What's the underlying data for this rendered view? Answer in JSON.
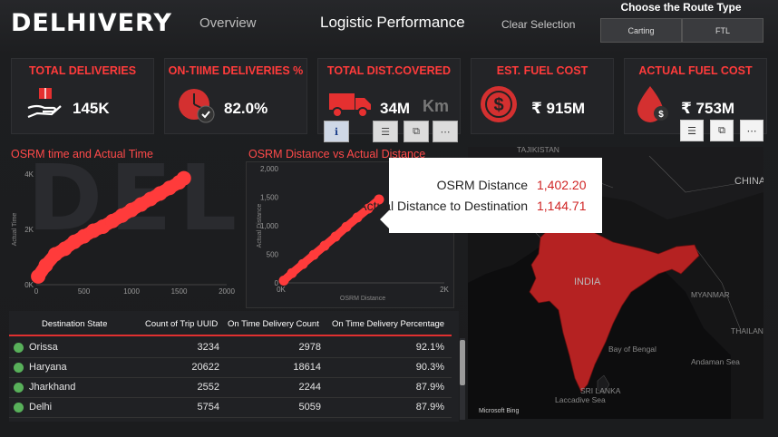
{
  "header": {
    "logo": "DELHIVERY",
    "nav": [
      "Overview",
      "Logistic Performance",
      "Clear Selection"
    ],
    "route_title": "Choose the Route Type",
    "route_options": [
      "Carting",
      "FTL"
    ]
  },
  "kpis": [
    {
      "title": "TOTAL DELIVERIES",
      "value": "145K",
      "icon": "hand-package-icon"
    },
    {
      "title": "ON-TIIME DELIVERIES %",
      "value": "82.0%",
      "icon": "clock-icon"
    },
    {
      "title": "TOTAL DIST.COVERED",
      "value": "34M",
      "unit": "Km",
      "icon": "truck-icon"
    },
    {
      "title": "EST. FUEL COST",
      "value": "₹ 915M",
      "icon": "dollar-icon"
    },
    {
      "title": "ACTUAL FUEL COST",
      "value": "₹ 753M",
      "icon": "fuel-drop-icon"
    }
  ],
  "chart_data": [
    {
      "type": "scatter",
      "title": "OSRM time and Actual Time",
      "xlabel": "",
      "ylabel": "Actual Time",
      "xlim": [
        0,
        2000
      ],
      "ylim": [
        0,
        4000
      ],
      "xticks": [
        "0",
        "500",
        "1000",
        "1500",
        "2000"
      ],
      "yticks": [
        "0K",
        "2K",
        "4K"
      ],
      "color": "#ff3b3b",
      "x": [
        20,
        100,
        200,
        300,
        400,
        500,
        600,
        700,
        800,
        900,
        1000,
        1100,
        1200,
        1300,
        1400,
        1500,
        1550
      ],
      "y": [
        300,
        700,
        1100,
        1300,
        1550,
        1750,
        1950,
        2100,
        2300,
        2500,
        2700,
        2900,
        3100,
        3300,
        3500,
        3700,
        3850
      ]
    },
    {
      "type": "scatter",
      "title": "OSRM Distance vs Actual Distance",
      "xlabel": "OSRM Distance",
      "ylabel": "Actual Distance",
      "xlim": [
        0,
        3000
      ],
      "ylim": [
        0,
        2000
      ],
      "xticks": [
        "0K",
        "2K"
      ],
      "yticks": [
        "0",
        "500",
        "1,000",
        "1,500",
        "2,000"
      ],
      "color": "#ff3b3b",
      "x": [
        50,
        200,
        400,
        600,
        800,
        1000,
        1200,
        1402.2,
        1600,
        1800
      ],
      "y": [
        40,
        170,
        330,
        490,
        650,
        810,
        980,
        1144.71,
        1300,
        1460
      ]
    }
  ],
  "tooltip": {
    "rows": [
      {
        "label": "OSRM Distance",
        "value": "1,402.20"
      },
      {
        "label": "Actual Distance to Destination",
        "value": "1,144.71"
      }
    ]
  },
  "table": {
    "columns": [
      "Destination State",
      "Count of Trip UUID",
      "On Time Delivery Count",
      "On Time Delivery Percentage"
    ],
    "rows": [
      {
        "state": "Orissa",
        "trips": "3234",
        "ontime": "2978",
        "pct": "92.1%"
      },
      {
        "state": "Haryana",
        "trips": "20622",
        "ontime": "18614",
        "pct": "90.3%"
      },
      {
        "state": "Jharkhand",
        "trips": "2552",
        "ontime": "2244",
        "pct": "87.9%"
      },
      {
        "state": "Delhi",
        "trips": "5754",
        "ontime": "5059",
        "pct": "87.9%"
      }
    ]
  },
  "map": {
    "labels": [
      "TAJIKISTAN",
      "CHINA",
      "INDIA",
      "MYANMAR",
      "Bay of Bengal",
      "Andaman Sea",
      "SRI LANKA",
      "Laccadive Sea",
      "THAILAND"
    ],
    "attribution": "Microsoft Bing"
  }
}
